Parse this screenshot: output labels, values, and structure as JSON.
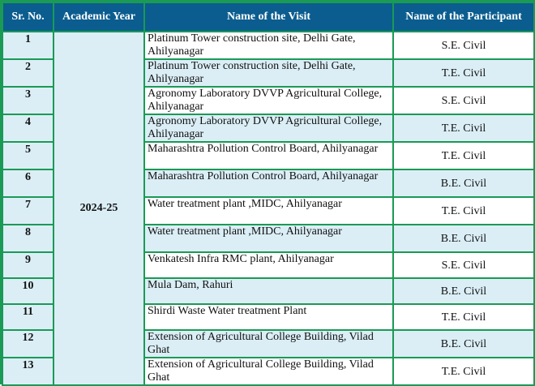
{
  "headers": {
    "sr": "Sr. No.",
    "year": "Academic Year",
    "visit": "Name of the Visit",
    "participant": "Name of the Participant"
  },
  "academic_year": "2024-25",
  "rows": [
    {
      "sr": "1",
      "visit": "Platinum Tower construction site, Delhi Gate, Ahilyanagar",
      "participant": "S.E. Civil"
    },
    {
      "sr": "2",
      "visit": "Platinum Tower construction site, Delhi Gate, Ahilyanagar",
      "participant": "T.E. Civil"
    },
    {
      "sr": "3",
      "visit": "Agronomy Laboratory DVVP Agricultural College, Ahilyanagar",
      "participant": "S.E. Civil"
    },
    {
      "sr": "4",
      "visit": "Agronomy Laboratory DVVP Agricultural College, Ahilyanagar",
      "participant": "T.E. Civil"
    },
    {
      "sr": "5",
      "visit": "Maharashtra Pollution Control Board, Ahilyanagar",
      "participant": "T.E. Civil"
    },
    {
      "sr": "6",
      "visit": "Maharashtra Pollution Control Board, Ahilyanagar",
      "participant": "B.E. Civil"
    },
    {
      "sr": "7",
      "visit": "Water treatment plant ,MIDC, Ahilyanagar",
      "participant": "T.E. Civil"
    },
    {
      "sr": "8",
      "visit": "Water treatment plant ,MIDC, Ahilyanagar",
      "participant": "B.E. Civil"
    },
    {
      "sr": "9",
      "visit": "Venkatesh Infra RMC plant, Ahilyanagar",
      "participant": "S.E. Civil"
    },
    {
      "sr": "10",
      "visit": "Mula Dam, Rahuri",
      "participant": "B.E. Civil"
    },
    {
      "sr": "11",
      "visit": "Shirdi Waste Water treatment Plant",
      "participant": "T.E. Civil"
    },
    {
      "sr": "12",
      "visit": "Extension of Agricultural College Building, Vilad Ghat",
      "participant": "B.E. Civil"
    },
    {
      "sr": "13",
      "visit": "Extension of Agricultural College Building, Vilad Ghat",
      "participant": "T.E. Civil"
    }
  ],
  "colors": {
    "header_bg": "#0b5d8f",
    "grid": "#1a9a55",
    "light_row": "#dbeef6"
  }
}
